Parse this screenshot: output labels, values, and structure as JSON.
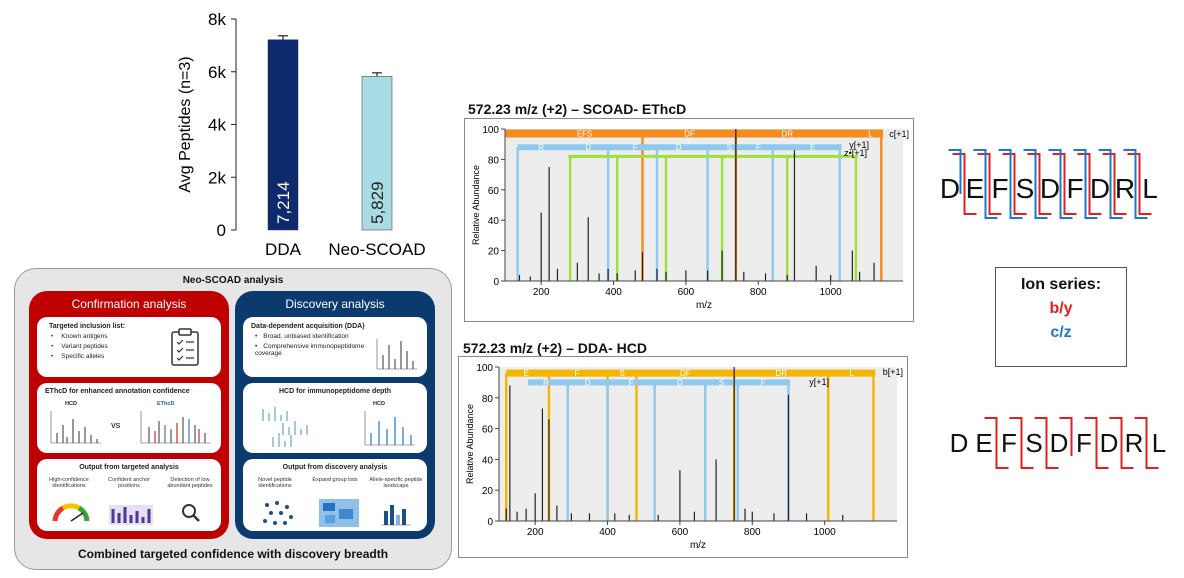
{
  "chart_data": [
    {
      "type": "bar",
      "categories": [
        "DDA",
        "Neo-SCOAD"
      ],
      "values": [
        7214,
        5829
      ],
      "value_labels": [
        "7,214",
        "5,829"
      ],
      "error": [
        150,
        130
      ],
      "ylabel": "Avg Peptides (n=3)",
      "yticks": [
        "0",
        "2k",
        "4k",
        "6k",
        "8k"
      ],
      "ylim": [
        0,
        8000
      ],
      "colors": [
        "#0d2a6e",
        "#a8dbe3"
      ]
    },
    {
      "type": "bar",
      "title": "572.23 m/z (+2) – SCOAD- EThcD",
      "xlabel": "m/z",
      "ylabel": "Relative Abundance",
      "xlim": [
        100,
        1200
      ],
      "ylim": [
        0,
        100
      ],
      "xticks": [
        200,
        400,
        600,
        800,
        1000
      ],
      "yticks": [
        0,
        20,
        40,
        60,
        80,
        100
      ],
      "peaks": [
        {
          "x": 140,
          "y": 4
        },
        {
          "x": 170,
          "y": 3
        },
        {
          "x": 200,
          "y": 45
        },
        {
          "x": 222,
          "y": 75
        },
        {
          "x": 245,
          "y": 8
        },
        {
          "x": 300,
          "y": 12
        },
        {
          "x": 330,
          "y": 42
        },
        {
          "x": 360,
          "y": 5
        },
        {
          "x": 385,
          "y": 8
        },
        {
          "x": 410,
          "y": 5
        },
        {
          "x": 460,
          "y": 7
        },
        {
          "x": 480,
          "y": 19
        },
        {
          "x": 520,
          "y": 8
        },
        {
          "x": 545,
          "y": 6
        },
        {
          "x": 600,
          "y": 7
        },
        {
          "x": 660,
          "y": 7
        },
        {
          "x": 700,
          "y": 20
        },
        {
          "x": 738,
          "y": 100
        },
        {
          "x": 760,
          "y": 6
        },
        {
          "x": 820,
          "y": 5
        },
        {
          "x": 880,
          "y": 4
        },
        {
          "x": 900,
          "y": 86
        },
        {
          "x": 960,
          "y": 10
        },
        {
          "x": 1000,
          "y": 4
        },
        {
          "x": 1060,
          "y": 20
        },
        {
          "x": 1080,
          "y": 6
        },
        {
          "x": 1120,
          "y": 12
        }
      ],
      "ion_labels": [
        "c[+1]",
        "y[+1]",
        "z•[+1]"
      ],
      "frag_labels_c": [
        "EFS",
        "DF",
        "DR",
        "L"
      ],
      "frag_labels_blue": [
        "R",
        "D",
        "F",
        "D",
        "S",
        "F",
        "E"
      ],
      "colors": {
        "c": "#f28c1e",
        "y": "#8ec9f0",
        "z": "#9ee03c",
        "peak": "#222222"
      }
    },
    {
      "type": "bar",
      "title": "572.23 m/z (+2) – DDA- HCD",
      "xlabel": "m/z",
      "ylabel": "Relative Abundance",
      "xlim": [
        100,
        1200
      ],
      "ylim": [
        0,
        100
      ],
      "xticks": [
        200,
        400,
        600,
        800,
        1000
      ],
      "yticks": [
        0,
        20,
        40,
        60,
        80,
        100
      ],
      "peaks": [
        {
          "x": 120,
          "y": 8
        },
        {
          "x": 130,
          "y": 88
        },
        {
          "x": 150,
          "y": 6
        },
        {
          "x": 175,
          "y": 8
        },
        {
          "x": 200,
          "y": 18
        },
        {
          "x": 220,
          "y": 73
        },
        {
          "x": 238,
          "y": 66
        },
        {
          "x": 260,
          "y": 10
        },
        {
          "x": 300,
          "y": 5
        },
        {
          "x": 350,
          "y": 5
        },
        {
          "x": 420,
          "y": 5
        },
        {
          "x": 460,
          "y": 4
        },
        {
          "x": 540,
          "y": 4
        },
        {
          "x": 600,
          "y": 33
        },
        {
          "x": 640,
          "y": 6
        },
        {
          "x": 700,
          "y": 40
        },
        {
          "x": 750,
          "y": 100
        },
        {
          "x": 780,
          "y": 8
        },
        {
          "x": 800,
          "y": 6
        },
        {
          "x": 860,
          "y": 5
        },
        {
          "x": 900,
          "y": 82
        },
        {
          "x": 950,
          "y": 5
        },
        {
          "x": 1050,
          "y": 4
        }
      ],
      "ion_labels": [
        "b[+1]",
        "y[+1]"
      ],
      "frag_labels_b": [
        "E",
        "F",
        "S",
        "DF",
        "DR",
        "L"
      ],
      "frag_labels_y": [
        "R",
        "D",
        "F",
        "D",
        "S",
        "F"
      ],
      "colors": {
        "b": "#f5b400",
        "y": "#8ec9f0",
        "peak": "#222222"
      }
    }
  ],
  "workflow": {
    "title": "Neo-SCOAD analysis",
    "footer": "Combined targeted confidence with discovery breadth",
    "confirmation": {
      "heading": "Confirmation analysis",
      "inclusion_title": "Targeted inclusion list:",
      "inclusion_items": [
        "Known antigens",
        "Variant peptides",
        "Specific alleles"
      ],
      "ethcd_title": "EThcD for enhanced annotation confidence",
      "hcd_tag": "HCD",
      "vs_tag": "VS",
      "ethcd_tag": "EThcD",
      "output_title": "Output from targeted analysis",
      "outputs": [
        "High-confidence identifications",
        "Confident anchor positions",
        "Detection of low abundant peptides"
      ]
    },
    "discovery": {
      "heading": "Discovery analysis",
      "dda_title": "Data-dependent acquisition (DDA)",
      "dda_items": [
        "Broad, unbiased identification",
        "Comprehensive immunopeptidome coverage"
      ],
      "hcd_title": "HCD for immunopeptidome depth",
      "hcd_tag": "HCD",
      "output_title": "Output from discovery analysis",
      "outputs": [
        "Novel peptide identifications",
        "Expand group lists",
        "Allele-specific peptide landscape"
      ]
    }
  },
  "sequences": {
    "top": [
      "D",
      "E",
      "F",
      "S",
      "D",
      "F",
      "D",
      "R",
      "L"
    ],
    "bottom": [
      "D",
      "E",
      "F",
      "S",
      "D",
      "F",
      "D",
      "R",
      "L"
    ]
  },
  "ion_series": {
    "title": "Ion series:",
    "b": "b/y",
    "c": "c/z",
    "b_color": "#e02020",
    "c_color": "#1a7ac8"
  }
}
